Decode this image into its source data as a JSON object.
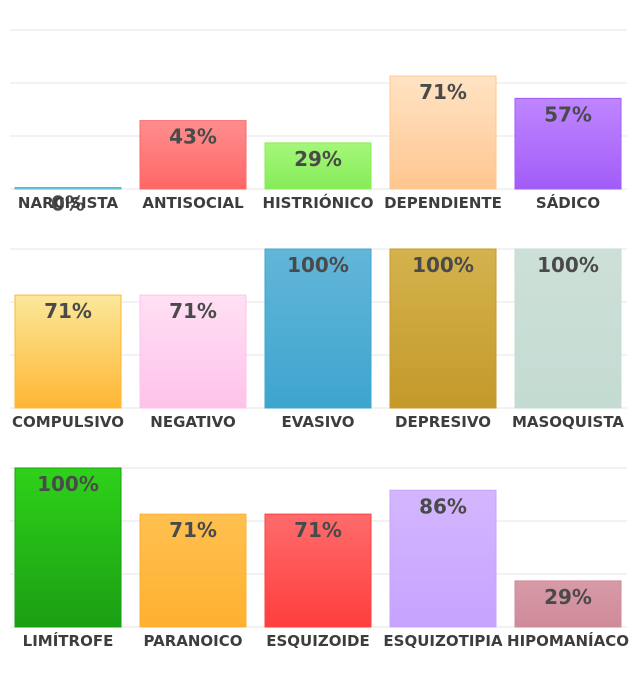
{
  "chart_data": [
    {
      "type": "bar",
      "categories": [
        "NARCISISTA",
        "ANTISOCIAL",
        "HISTRIÓNICO",
        "DEPENDIENTE",
        "SÁDICO"
      ],
      "values": [
        0,
        43,
        29,
        71,
        57
      ],
      "value_labels": [
        "0%",
        "43%",
        "29%",
        "71%",
        "57%"
      ],
      "colors": [
        [
          "#7fd3e6",
          "#5ab8d3"
        ],
        [
          "#ff8e8e",
          "#ff6666"
        ],
        [
          "#a5f77a",
          "#86ec58"
        ],
        [
          "#ffe3c4",
          "#ffc68f"
        ],
        [
          "#bf86ff",
          "#a25cf7"
        ]
      ],
      "ylim": [
        0,
        100
      ],
      "grid": true
    },
    {
      "type": "bar",
      "categories": [
        "COMPULSIVO",
        "NEGATIVO",
        "EVASIVO",
        "DEPRESIVO",
        "MASOQUISTA"
      ],
      "values": [
        71,
        71,
        100,
        100,
        100
      ],
      "value_labels": [
        "71%",
        "71%",
        "100%",
        "100%",
        "100%"
      ],
      "colors": [
        [
          "#fbe89a",
          "#ffb633"
        ],
        [
          "#ffe0f4",
          "#ffc2ea"
        ],
        [
          "#62b6d8",
          "#3ea5cf"
        ],
        [
          "#d4b24d",
          "#c49a2a"
        ],
        [
          "#cde0d8",
          "#c4dbd2"
        ]
      ],
      "ylim": [
        0,
        100
      ],
      "grid": true
    },
    {
      "type": "bar",
      "categories": [
        "LIMÍTROFE",
        "PARANOICO",
        "ESQUIZOIDE",
        "ESQUIZOTIPIA",
        "HIPOMANÍACO"
      ],
      "values": [
        100,
        71,
        71,
        86,
        29
      ],
      "value_labels": [
        "100%",
        "71%",
        "71%",
        "86%",
        "29%"
      ],
      "colors": [
        [
          "#2ed21a",
          "#1a9e12"
        ],
        [
          "#ffc050",
          "#ffb030"
        ],
        [
          "#ff6b6b",
          "#ff3e3e"
        ],
        [
          "#d3b6ff",
          "#c7a3ff"
        ],
        [
          "#d79ba8",
          "#cf8a9a"
        ]
      ],
      "ylim": [
        0,
        100
      ],
      "grid": true
    }
  ]
}
